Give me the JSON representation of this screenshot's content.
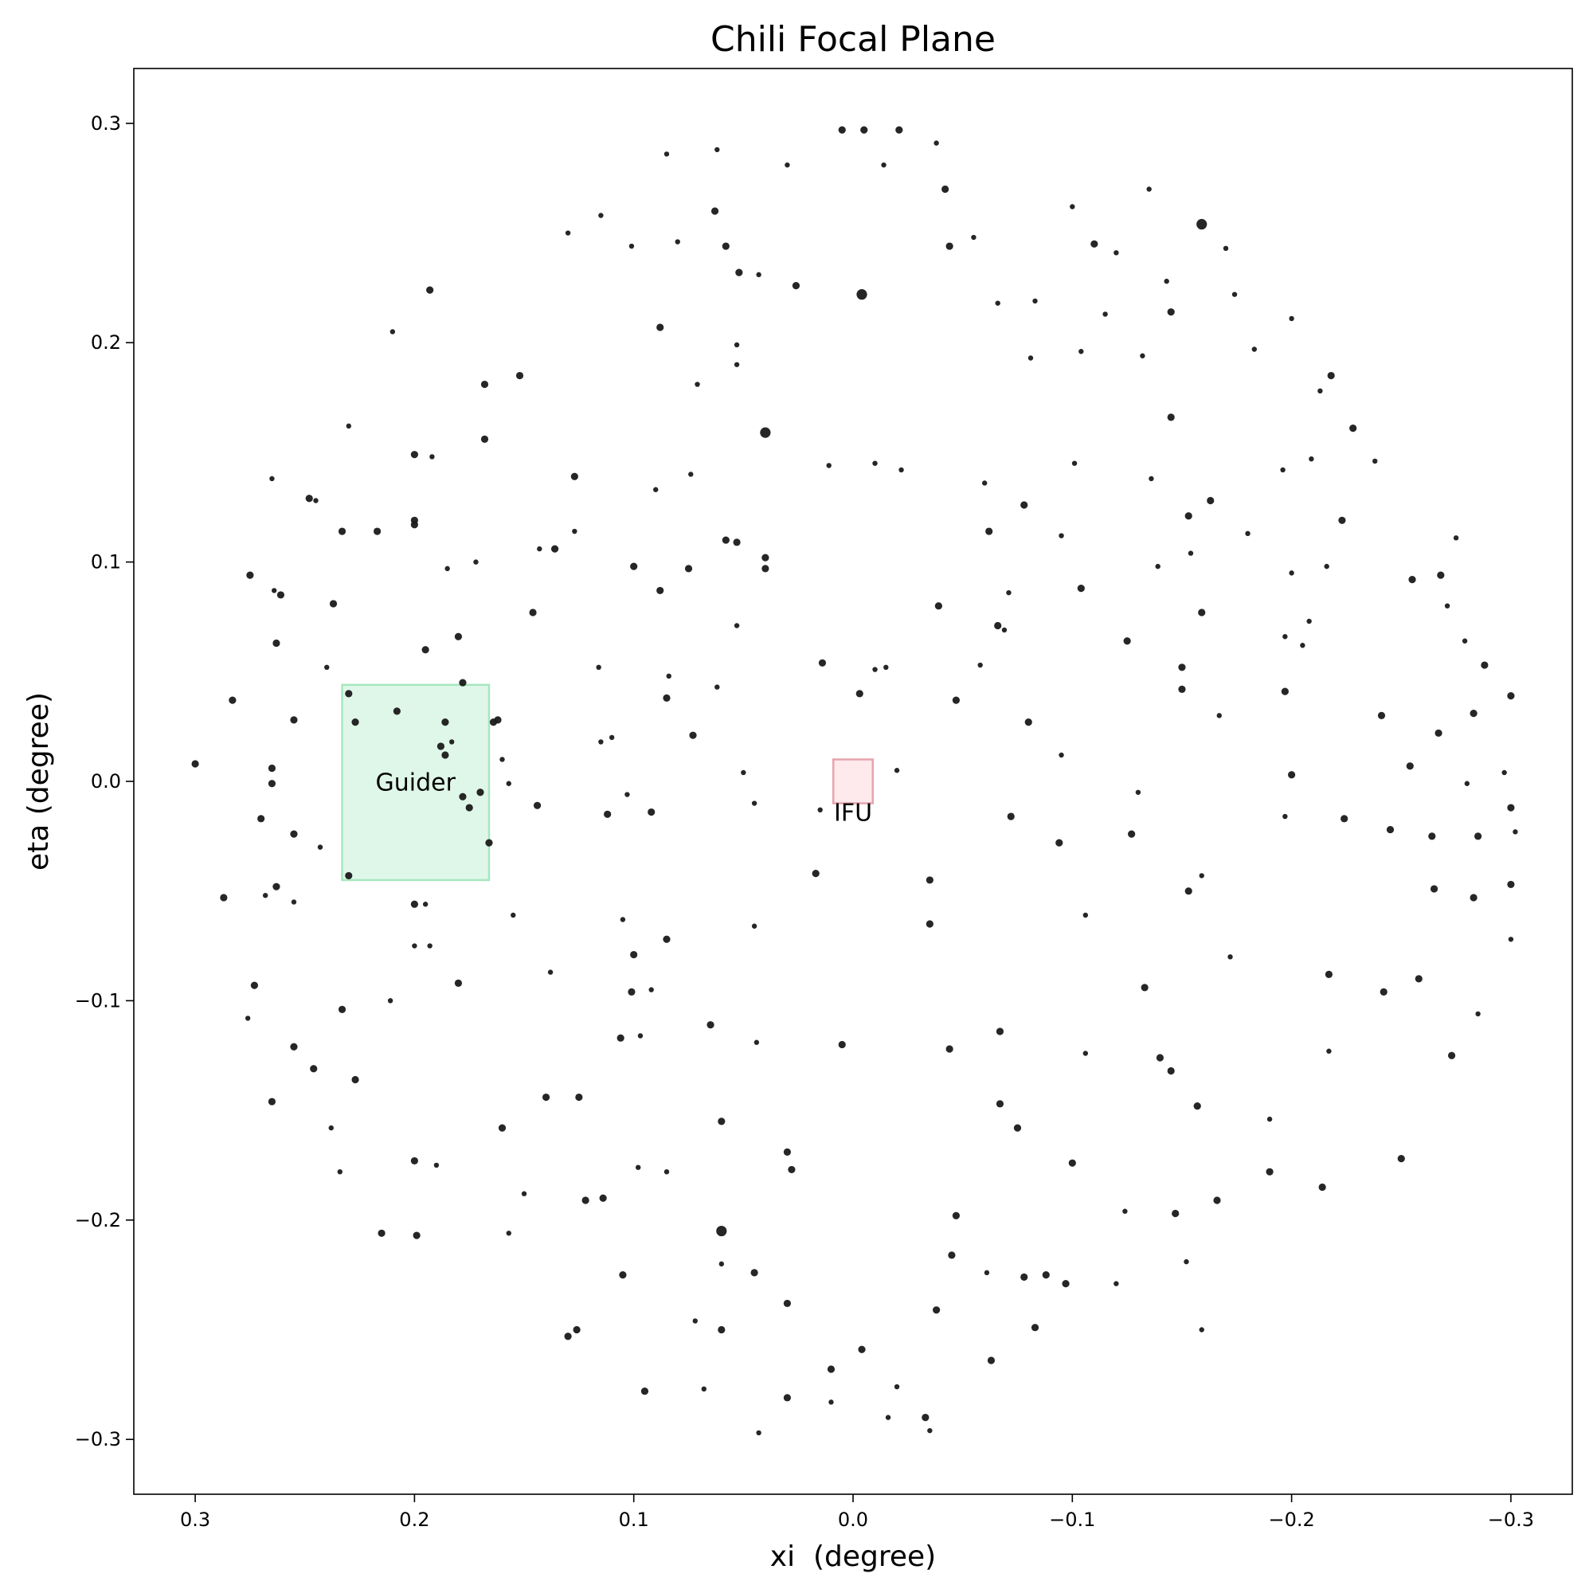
{
  "chart_data": {
    "type": "scatter",
    "title": "Chili Focal Plane",
    "xlabel": "xi  (degree)",
    "ylabel": "eta (degree)",
    "xlim": [
      0.328,
      -0.328
    ],
    "ylim": [
      -0.325,
      0.325
    ],
    "x_reversed": true,
    "grid": false,
    "x_ticks": [
      0.3,
      0.2,
      0.1,
      0.0,
      -0.1,
      -0.2,
      -0.3
    ],
    "x_tick_labels": [
      "0.3",
      "0.2",
      "0.1",
      "0.0",
      "−0.1",
      "−0.2",
      "−0.3"
    ],
    "y_ticks": [
      0.3,
      0.2,
      0.1,
      0.0,
      -0.1,
      -0.2,
      -0.3
    ],
    "y_tick_labels": [
      "0.3",
      "0.2",
      "0.1",
      "0.0",
      "−0.1",
      "−0.2",
      "−0.3"
    ],
    "marker_color": "#1a1a1a",
    "regions": [
      {
        "label": "Guider",
        "xi": [
          0.233,
          0.166
        ],
        "eta": [
          -0.045,
          0.044
        ],
        "fill": "#d4f4e0",
        "stroke": "#a8e6bf"
      },
      {
        "label": "IFU",
        "xi": [
          0.009,
          -0.009
        ],
        "eta": [
          -0.01,
          0.01
        ],
        "fill": "#fde2e6",
        "stroke": "#e6a4ad"
      }
    ],
    "points": [
      [
        0.005,
        0.297,
        1
      ],
      [
        -0.005,
        0.297,
        1
      ],
      [
        -0.021,
        0.297,
        1
      ],
      [
        -0.038,
        0.291,
        0
      ],
      [
        0.085,
        0.286,
        0
      ],
      [
        0.062,
        0.288,
        0
      ],
      [
        0.03,
        0.281,
        0
      ],
      [
        -0.014,
        0.281,
        0
      ],
      [
        -0.042,
        0.27,
        1
      ],
      [
        -0.135,
        0.27,
        0
      ],
      [
        -0.159,
        0.254,
        2
      ],
      [
        0.063,
        0.26,
        1
      ],
      [
        0.115,
        0.258,
        0
      ],
      [
        0.13,
        0.25,
        0
      ],
      [
        0.101,
        0.244,
        0
      ],
      [
        0.08,
        0.246,
        0
      ],
      [
        0.058,
        0.244,
        1
      ],
      [
        -0.044,
        0.244,
        1
      ],
      [
        -0.055,
        0.248,
        0
      ],
      [
        -0.1,
        0.262,
        0
      ],
      [
        -0.12,
        0.241,
        0
      ],
      [
        -0.11,
        0.245,
        1
      ],
      [
        -0.143,
        0.228,
        0
      ],
      [
        -0.17,
        0.243,
        0
      ],
      [
        0.043,
        0.231,
        0
      ],
      [
        0.052,
        0.232,
        1
      ],
      [
        -0.004,
        0.222,
        2
      ],
      [
        0.026,
        0.226,
        1
      ],
      [
        -0.066,
        0.218,
        0
      ],
      [
        -0.083,
        0.219,
        0
      ],
      [
        -0.115,
        0.213,
        0
      ],
      [
        -0.145,
        0.214,
        1
      ],
      [
        -0.174,
        0.222,
        0
      ],
      [
        -0.2,
        0.211,
        0
      ],
      [
        -0.218,
        0.185,
        1
      ],
      [
        0.193,
        0.224,
        1
      ],
      [
        0.21,
        0.205,
        0
      ],
      [
        0.088,
        0.207,
        1
      ],
      [
        0.053,
        0.19,
        0
      ],
      [
        0.053,
        0.199,
        0
      ],
      [
        -0.081,
        0.193,
        0
      ],
      [
        -0.104,
        0.196,
        0
      ],
      [
        -0.132,
        0.194,
        0
      ],
      [
        -0.183,
        0.197,
        0
      ],
      [
        0.152,
        0.185,
        1
      ],
      [
        0.168,
        0.181,
        1
      ],
      [
        0.04,
        0.159,
        2
      ],
      [
        -0.145,
        0.166,
        1
      ],
      [
        -0.228,
        0.161,
        1
      ],
      [
        -0.213,
        0.178,
        0
      ],
      [
        -0.209,
        0.147,
        0
      ],
      [
        -0.238,
        0.146,
        0
      ],
      [
        0.23,
        0.162,
        0
      ],
      [
        0.2,
        0.149,
        1
      ],
      [
        0.192,
        0.148,
        0
      ],
      [
        0.168,
        0.156,
        1
      ],
      [
        0.127,
        0.139,
        1
      ],
      [
        0.09,
        0.133,
        0
      ],
      [
        0.074,
        0.14,
        0
      ],
      [
        0.011,
        0.144,
        0
      ],
      [
        -0.01,
        0.145,
        0
      ],
      [
        -0.022,
        0.142,
        0
      ],
      [
        -0.06,
        0.136,
        0
      ],
      [
        -0.078,
        0.126,
        1
      ],
      [
        -0.101,
        0.145,
        0
      ],
      [
        -0.136,
        0.138,
        0
      ],
      [
        -0.163,
        0.128,
        1
      ],
      [
        -0.196,
        0.142,
        0
      ],
      [
        0.265,
        0.138,
        0
      ],
      [
        0.248,
        0.129,
        1
      ],
      [
        0.245,
        0.128,
        0
      ],
      [
        0.233,
        0.114,
        1
      ],
      [
        0.2,
        0.119,
        1
      ],
      [
        0.2,
        0.117,
        1
      ],
      [
        0.217,
        0.114,
        1
      ],
      [
        0.127,
        0.114,
        0
      ],
      [
        0.143,
        0.106,
        0
      ],
      [
        0.136,
        0.106,
        1
      ],
      [
        0.058,
        0.11,
        1
      ],
      [
        0.053,
        0.109,
        1
      ],
      [
        -0.062,
        0.114,
        1
      ],
      [
        -0.095,
        0.112,
        0
      ],
      [
        -0.139,
        0.098,
        0
      ],
      [
        -0.154,
        0.104,
        0
      ],
      [
        -0.153,
        0.121,
        1
      ],
      [
        -0.18,
        0.113,
        0
      ],
      [
        -0.223,
        0.119,
        1
      ],
      [
        -0.255,
        0.092,
        1
      ],
      [
        -0.275,
        0.111,
        0
      ],
      [
        0.275,
        0.094,
        1
      ],
      [
        0.264,
        0.087,
        0
      ],
      [
        0.261,
        0.085,
        1
      ],
      [
        0.237,
        0.081,
        1
      ],
      [
        0.185,
        0.097,
        0
      ],
      [
        0.172,
        0.1,
        0
      ],
      [
        0.1,
        0.098,
        1
      ],
      [
        0.075,
        0.097,
        1
      ],
      [
        0.04,
        0.102,
        1
      ],
      [
        0.04,
        0.097,
        1
      ],
      [
        -0.071,
        0.086,
        0
      ],
      [
        -0.104,
        0.088,
        1
      ],
      [
        -0.159,
        0.077,
        1
      ],
      [
        -0.2,
        0.095,
        0
      ],
      [
        -0.216,
        0.098,
        0
      ],
      [
        -0.268,
        0.094,
        1
      ],
      [
        -0.271,
        0.08,
        0
      ],
      [
        0.24,
        0.052,
        0
      ],
      [
        0.23,
        0.04,
        1
      ],
      [
        0.18,
        0.066,
        1
      ],
      [
        0.195,
        0.06,
        1
      ],
      [
        0.146,
        0.077,
        1
      ],
      [
        0.088,
        0.087,
        1
      ],
      [
        0.053,
        0.071,
        0
      ],
      [
        -0.066,
        0.071,
        1
      ],
      [
        -0.069,
        0.069,
        0
      ],
      [
        -0.125,
        0.064,
        1
      ],
      [
        -0.197,
        0.066,
        0
      ],
      [
        -0.205,
        0.062,
        0
      ],
      [
        -0.208,
        0.073,
        0
      ],
      [
        -0.279,
        0.064,
        0
      ],
      [
        -0.288,
        0.053,
        1
      ],
      [
        0.283,
        0.037,
        1
      ],
      [
        0.263,
        0.063,
        1
      ],
      [
        0.186,
        0.027,
        1
      ],
      [
        0.162,
        0.028,
        1
      ],
      [
        0.164,
        0.027,
        1
      ],
      [
        0.085,
        0.038,
        1
      ],
      [
        0.062,
        0.043,
        0
      ],
      [
        0.014,
        0.054,
        1
      ],
      [
        -0.003,
        0.04,
        1
      ],
      [
        -0.039,
        0.08,
        1
      ],
      [
        -0.01,
        0.051,
        0
      ],
      [
        -0.047,
        0.037,
        1
      ],
      [
        -0.08,
        0.027,
        1
      ],
      [
        -0.15,
        0.052,
        1
      ],
      [
        -0.15,
        0.042,
        1
      ],
      [
        -0.197,
        0.041,
        1
      ],
      [
        -0.241,
        0.03,
        1
      ],
      [
        -0.267,
        0.022,
        1
      ],
      [
        -0.283,
        0.031,
        1
      ],
      [
        -0.3,
        0.039,
        1
      ],
      [
        0.3,
        0.008,
        1
      ],
      [
        0.265,
        0.006,
        1
      ],
      [
        0.255,
        0.028,
        1
      ],
      [
        0.227,
        0.027,
        1
      ],
      [
        0.208,
        0.032,
        1
      ],
      [
        0.188,
        0.016,
        1
      ],
      [
        0.186,
        0.012,
        1
      ],
      [
        0.183,
        0.018,
        0
      ],
      [
        0.16,
        0.01,
        0
      ],
      [
        0.073,
        0.021,
        1
      ],
      [
        0.05,
        0.004,
        0
      ],
      [
        -0.02,
        0.005,
        0
      ],
      [
        -0.095,
        0.012,
        0
      ],
      [
        -0.2,
        0.003,
        1
      ],
      [
        -0.254,
        0.007,
        1
      ],
      [
        -0.28,
        -0.001,
        0
      ],
      [
        -0.297,
        0.004,
        0
      ],
      [
        0.265,
        -0.001,
        1
      ],
      [
        0.27,
        -0.017,
        1
      ],
      [
        0.255,
        -0.024,
        1
      ],
      [
        0.243,
        -0.03,
        0
      ],
      [
        0.178,
        -0.007,
        1
      ],
      [
        0.175,
        -0.012,
        1
      ],
      [
        0.17,
        -0.005,
        1
      ],
      [
        0.166,
        -0.028,
        1
      ],
      [
        0.157,
        -0.001,
        0
      ],
      [
        0.092,
        -0.014,
        1
      ],
      [
        0.045,
        -0.01,
        0
      ],
      [
        0.015,
        -0.013,
        0
      ],
      [
        -0.072,
        -0.016,
        1
      ],
      [
        -0.094,
        -0.028,
        1
      ],
      [
        -0.127,
        -0.024,
        1
      ],
      [
        -0.197,
        -0.016,
        0
      ],
      [
        -0.224,
        -0.017,
        1
      ],
      [
        -0.245,
        -0.022,
        1
      ],
      [
        -0.264,
        -0.025,
        1
      ],
      [
        -0.285,
        -0.025,
        1
      ],
      [
        -0.3,
        -0.012,
        1
      ],
      [
        -0.302,
        -0.023,
        0
      ],
      [
        0.287,
        -0.053,
        1
      ],
      [
        0.268,
        -0.052,
        0
      ],
      [
        0.263,
        -0.048,
        1
      ],
      [
        0.255,
        -0.055,
        0
      ],
      [
        0.23,
        -0.043,
        1
      ],
      [
        0.2,
        -0.056,
        1
      ],
      [
        0.195,
        -0.056,
        0
      ],
      [
        0.155,
        -0.061,
        0
      ],
      [
        0.105,
        -0.063,
        0
      ],
      [
        0.1,
        -0.079,
        1
      ],
      [
        0.085,
        -0.072,
        1
      ],
      [
        0.045,
        -0.066,
        0
      ],
      [
        0.017,
        -0.042,
        1
      ],
      [
        -0.035,
        -0.045,
        1
      ],
      [
        -0.035,
        -0.065,
        1
      ],
      [
        -0.106,
        -0.061,
        0
      ],
      [
        -0.153,
        -0.05,
        1
      ],
      [
        -0.159,
        -0.043,
        0
      ],
      [
        -0.265,
        -0.049,
        1
      ],
      [
        -0.283,
        -0.053,
        1
      ],
      [
        -0.3,
        -0.047,
        1
      ],
      [
        -0.3,
        -0.072,
        0
      ],
      [
        0.273,
        -0.093,
        1
      ],
      [
        0.233,
        -0.104,
        1
      ],
      [
        0.2,
        -0.075,
        0
      ],
      [
        0.193,
        -0.075,
        0
      ],
      [
        0.18,
        -0.092,
        1
      ],
      [
        0.138,
        -0.087,
        0
      ],
      [
        0.101,
        -0.096,
        1
      ],
      [
        0.092,
        -0.095,
        0
      ],
      [
        -0.133,
        -0.094,
        1
      ],
      [
        -0.172,
        -0.08,
        0
      ],
      [
        -0.217,
        -0.088,
        1
      ],
      [
        -0.242,
        -0.096,
        1
      ],
      [
        -0.258,
        -0.09,
        1
      ],
      [
        0.276,
        -0.108,
        0
      ],
      [
        0.255,
        -0.121,
        1
      ],
      [
        0.246,
        -0.131,
        1
      ],
      [
        0.211,
        -0.1,
        0
      ],
      [
        0.106,
        -0.117,
        1
      ],
      [
        0.097,
        -0.116,
        0
      ],
      [
        0.065,
        -0.111,
        1
      ],
      [
        0.044,
        -0.119,
        0
      ],
      [
        0.005,
        -0.12,
        1
      ],
      [
        -0.044,
        -0.122,
        1
      ],
      [
        -0.067,
        -0.114,
        1
      ],
      [
        -0.106,
        -0.124,
        0
      ],
      [
        -0.14,
        -0.126,
        1
      ],
      [
        -0.145,
        -0.132,
        1
      ],
      [
        -0.217,
        -0.123,
        0
      ],
      [
        -0.273,
        -0.125,
        1
      ],
      [
        -0.285,
        -0.106,
        0
      ],
      [
        0.265,
        -0.146,
        1
      ],
      [
        0.238,
        -0.158,
        0
      ],
      [
        0.227,
        -0.136,
        1
      ],
      [
        0.16,
        -0.158,
        1
      ],
      [
        0.14,
        -0.144,
        1
      ],
      [
        0.125,
        -0.144,
        1
      ],
      [
        0.098,
        -0.176,
        0
      ],
      [
        0.085,
        -0.178,
        0
      ],
      [
        0.06,
        -0.155,
        1
      ],
      [
        0.03,
        -0.169,
        1
      ],
      [
        -0.067,
        -0.147,
        1
      ],
      [
        -0.075,
        -0.158,
        1
      ],
      [
        -0.1,
        -0.174,
        1
      ],
      [
        -0.157,
        -0.148,
        1
      ],
      [
        -0.19,
        -0.154,
        0
      ],
      [
        -0.25,
        -0.172,
        1
      ],
      [
        0.234,
        -0.178,
        0
      ],
      [
        0.2,
        -0.173,
        1
      ],
      [
        0.19,
        -0.175,
        0
      ],
      [
        0.15,
        -0.188,
        0
      ],
      [
        0.122,
        -0.191,
        1
      ],
      [
        0.114,
        -0.19,
        1
      ],
      [
        0.06,
        -0.205,
        2
      ],
      [
        0.028,
        -0.177,
        1
      ],
      [
        -0.047,
        -0.198,
        1
      ],
      [
        -0.088,
        -0.225,
        1
      ],
      [
        -0.097,
        -0.229,
        1
      ],
      [
        -0.124,
        -0.196,
        0
      ],
      [
        -0.147,
        -0.197,
        1
      ],
      [
        -0.166,
        -0.191,
        1
      ],
      [
        -0.19,
        -0.178,
        1
      ],
      [
        -0.214,
        -0.185,
        1
      ],
      [
        0.215,
        -0.206,
        1
      ],
      [
        0.199,
        -0.207,
        1
      ],
      [
        0.157,
        -0.206,
        0
      ],
      [
        0.105,
        -0.225,
        1
      ],
      [
        0.06,
        -0.22,
        0
      ],
      [
        0.045,
        -0.224,
        1
      ],
      [
        0.03,
        -0.238,
        1
      ],
      [
        -0.045,
        -0.216,
        1
      ],
      [
        -0.061,
        -0.224,
        0
      ],
      [
        -0.078,
        -0.226,
        1
      ],
      [
        -0.12,
        -0.229,
        0
      ],
      [
        -0.152,
        -0.219,
        0
      ],
      [
        0.13,
        -0.253,
        1
      ],
      [
        0.126,
        -0.25,
        1
      ],
      [
        0.072,
        -0.246,
        0
      ],
      [
        0.06,
        -0.25,
        1
      ],
      [
        -0.038,
        -0.241,
        1
      ],
      [
        -0.063,
        -0.264,
        1
      ],
      [
        -0.083,
        -0.249,
        1
      ],
      [
        -0.159,
        -0.25,
        0
      ],
      [
        0.095,
        -0.278,
        1
      ],
      [
        0.068,
        -0.277,
        0
      ],
      [
        0.03,
        -0.281,
        1
      ],
      [
        0.01,
        -0.268,
        1
      ],
      [
        -0.004,
        -0.259,
        1
      ],
      [
        -0.02,
        -0.276,
        0
      ],
      [
        -0.033,
        -0.29,
        1
      ],
      [
        -0.035,
        -0.296,
        0
      ],
      [
        0.043,
        -0.297,
        0
      ],
      [
        0.01,
        -0.283,
        0
      ],
      [
        -0.016,
        -0.29,
        0
      ],
      [
        0.178,
        0.045,
        1
      ],
      [
        0.115,
        0.018,
        0
      ],
      [
        0.11,
        0.02,
        0
      ],
      [
        0.144,
        -0.011,
        1
      ],
      [
        0.112,
        -0.015,
        1
      ],
      [
        0.103,
        -0.006,
        0
      ],
      [
        -0.13,
        -0.005,
        0
      ],
      [
        -0.167,
        0.03,
        0
      ],
      [
        0.071,
        0.181,
        0
      ],
      [
        0.116,
        0.052,
        0
      ],
      [
        0.084,
        0.048,
        0
      ],
      [
        -0.015,
        0.052,
        0
      ],
      [
        -0.058,
        0.053,
        0
      ]
    ]
  }
}
